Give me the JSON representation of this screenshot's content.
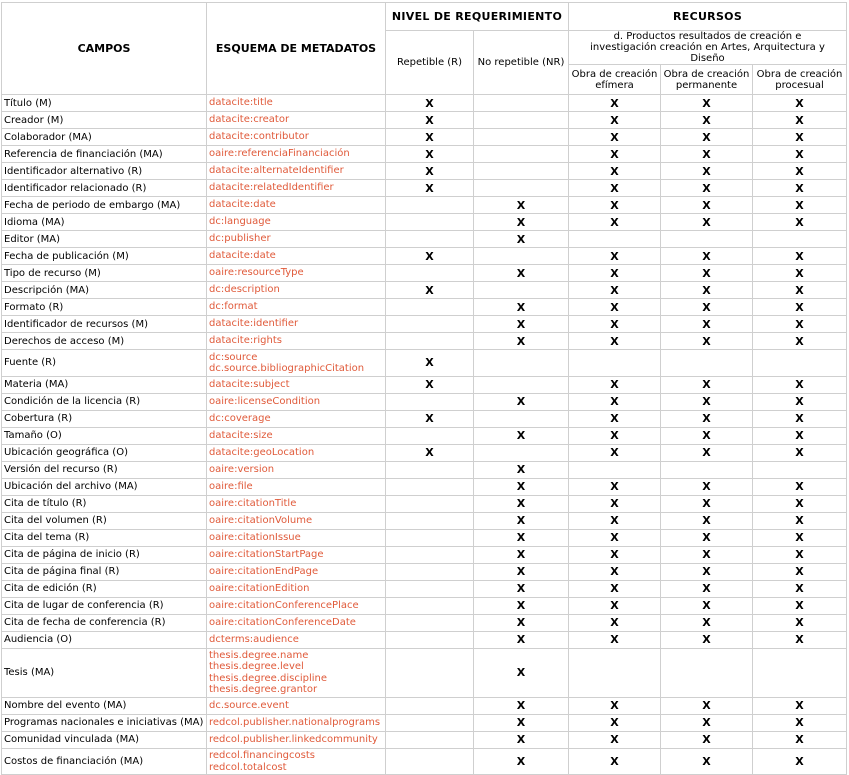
{
  "header": {
    "campos": "CAMPOS",
    "esquema": "ESQUEMA DE METADATOS",
    "nivel": "NIVEL DE REQUERIMIENTO",
    "recursos": "RECURSOS",
    "repetible": "Repetible (R)",
    "no_repetible": "No repetible (NR)",
    "productos": "d. Productos resultados de creación e investigación creación en Artes, Arquitectura y Diseño",
    "obra_efimera": "Obra de creación efímera",
    "obra_permanente": "Obra de creación permanente",
    "obra_procesual": "Obra de creación procesual"
  },
  "rows": [
    {
      "campo": "Título (M)",
      "schema": [
        "datacite:title"
      ],
      "rep": "X",
      "nr": "",
      "ef": "X",
      "pe": "X",
      "pr": "X"
    },
    {
      "campo": "Creador (M)",
      "schema": [
        "datacite:creator"
      ],
      "rep": "X",
      "nr": "",
      "ef": "X",
      "pe": "X",
      "pr": "X"
    },
    {
      "campo": "Colaborador (MA)",
      "schema": [
        "datacite:contributor"
      ],
      "rep": "X",
      "nr": "",
      "ef": "X",
      "pe": "X",
      "pr": "X"
    },
    {
      "campo": "Referencia de financiación (MA)",
      "schema": [
        "oaire:referenciaFinanciación"
      ],
      "rep": "X",
      "nr": "",
      "ef": "X",
      "pe": "X",
      "pr": "X"
    },
    {
      "campo": "Identificador alternativo (R)",
      "schema": [
        "datacite:alternateIdentifier"
      ],
      "rep": "X",
      "nr": "",
      "ef": "X",
      "pe": "X",
      "pr": "X"
    },
    {
      "campo": "Identificador relacionado (R)",
      "schema": [
        "datacite:relatedIdentifier"
      ],
      "rep": "X",
      "nr": "",
      "ef": "X",
      "pe": "X",
      "pr": "X"
    },
    {
      "campo": "Fecha de periodo de embargo (MA)",
      "schema": [
        "datacite:date"
      ],
      "rep": "",
      "nr": "X",
      "ef": "X",
      "pe": "X",
      "pr": "X"
    },
    {
      "campo": "Idioma (MA)",
      "schema": [
        "dc:language"
      ],
      "rep": "",
      "nr": "X",
      "ef": "X",
      "pe": "X",
      "pr": "X"
    },
    {
      "campo": "Editor (MA)",
      "schema": [
        "dc:publisher"
      ],
      "rep": "",
      "nr": "X",
      "ef": "",
      "pe": "",
      "pr": ""
    },
    {
      "campo": "Fecha de publicación (M)",
      "schema": [
        "datacite:date"
      ],
      "rep": "X",
      "nr": "",
      "ef": "X",
      "pe": "X",
      "pr": "X"
    },
    {
      "campo": "Tipo de recurso (M)",
      "schema": [
        "oaire:resourceType"
      ],
      "rep": "",
      "nr": "X",
      "ef": "X",
      "pe": "X",
      "pr": "X"
    },
    {
      "campo": "Descripción (MA)",
      "schema": [
        "dc:description"
      ],
      "rep": "X",
      "nr": "",
      "ef": "X",
      "pe": "X",
      "pr": "X"
    },
    {
      "campo": "Formato (R)",
      "schema": [
        "dc:format"
      ],
      "rep": "",
      "nr": "X",
      "ef": "X",
      "pe": "X",
      "pr": "X"
    },
    {
      "campo": "Identificador de recursos (M)",
      "schema": [
        "datacite:identifier"
      ],
      "rep": "",
      "nr": "X",
      "ef": "X",
      "pe": "X",
      "pr": "X"
    },
    {
      "campo": "Derechos de acceso (M)",
      "schema": [
        "datacite:rights"
      ],
      "rep": "",
      "nr": "X",
      "ef": "X",
      "pe": "X",
      "pr": "X"
    },
    {
      "campo": "Fuente (R)",
      "schema": [
        "dc:source",
        "dc.source.bibliographicCitation"
      ],
      "rep": "X",
      "nr": "",
      "ef": "",
      "pe": "",
      "pr": ""
    },
    {
      "campo": "Materia (MA)",
      "schema": [
        "datacite:subject"
      ],
      "rep": "X",
      "nr": "",
      "ef": "X",
      "pe": "X",
      "pr": "X"
    },
    {
      "campo": "Condición de la licencia (R)",
      "schema": [
        "oaire:licenseCondition"
      ],
      "rep": "",
      "nr": "X",
      "ef": "X",
      "pe": "X",
      "pr": "X"
    },
    {
      "campo": "Cobertura (R)",
      "schema": [
        "dc:coverage"
      ],
      "rep": "X",
      "nr": "",
      "ef": "X",
      "pe": "X",
      "pr": "X"
    },
    {
      "campo": "Tamaño (O)",
      "schema": [
        "datacite:size"
      ],
      "rep": "",
      "nr": "X",
      "ef": "X",
      "pe": "X",
      "pr": "X"
    },
    {
      "campo": "Ubicación geográfica (O)",
      "schema": [
        "datacite:geoLocation"
      ],
      "rep": "X",
      "nr": "",
      "ef": "X",
      "pe": "X",
      "pr": "X"
    },
    {
      "campo": "Versión del recurso (R)",
      "schema": [
        "oaire:version"
      ],
      "rep": "",
      "nr": "X",
      "ef": "",
      "pe": "",
      "pr": ""
    },
    {
      "campo": "Ubicación del archivo (MA)",
      "schema": [
        "oaire:file"
      ],
      "rep": "",
      "nr": "X",
      "ef": "X",
      "pe": "X",
      "pr": "X"
    },
    {
      "campo": "Cita de título (R)",
      "schema": [
        "oaire:citationTitle"
      ],
      "rep": "",
      "nr": "X",
      "ef": "X",
      "pe": "X",
      "pr": "X"
    },
    {
      "campo": "Cita del volumen (R)",
      "schema": [
        "oaire:citationVolume"
      ],
      "rep": "",
      "nr": "X",
      "ef": "X",
      "pe": "X",
      "pr": "X"
    },
    {
      "campo": "Cita del tema (R)",
      "schema": [
        "oaire:citationIssue"
      ],
      "rep": "",
      "nr": "X",
      "ef": "X",
      "pe": "X",
      "pr": "X"
    },
    {
      "campo": "Cita de página de inicio (R)",
      "schema": [
        "oaire:citationStartPage"
      ],
      "rep": "",
      "nr": "X",
      "ef": "X",
      "pe": "X",
      "pr": "X"
    },
    {
      "campo": "Cita de página final (R)",
      "schema": [
        "oaire:citationEndPage"
      ],
      "rep": "",
      "nr": "X",
      "ef": "X",
      "pe": "X",
      "pr": "X"
    },
    {
      "campo": "Cita de edición (R)",
      "schema": [
        "oaire:citationEdition"
      ],
      "rep": "",
      "nr": "X",
      "ef": "X",
      "pe": "X",
      "pr": "X"
    },
    {
      "campo": "Cita de lugar de conferencia (R)",
      "schema": [
        "oaire:citationConferencePlace"
      ],
      "rep": "",
      "nr": "X",
      "ef": "X",
      "pe": "X",
      "pr": "X"
    },
    {
      "campo": "Cita de fecha de conferencia (R)",
      "schema": [
        "oaire:citationConferenceDate"
      ],
      "rep": "",
      "nr": "X",
      "ef": "X",
      "pe": "X",
      "pr": "X"
    },
    {
      "campo": "Audiencia (O)",
      "schema": [
        "dcterms:audience"
      ],
      "rep": "",
      "nr": "X",
      "ef": "X",
      "pe": "X",
      "pr": "X"
    },
    {
      "campo": "Tesis (MA)",
      "schema": [
        "thesis.degree.name",
        "thesis.degree.level",
        "thesis.degree.discipline",
        "thesis.degree.grantor"
      ],
      "rep": "",
      "nr": "X",
      "ef": "",
      "pe": "",
      "pr": ""
    },
    {
      "campo": "Nombre del evento (MA)",
      "schema": [
        "dc.source.event"
      ],
      "rep": "",
      "nr": "X",
      "ef": "X",
      "pe": "X",
      "pr": "X"
    },
    {
      "campo": "Programas nacionales e iniciativas (MA)",
      "schema": [
        "redcol.publisher.nationalprograms"
      ],
      "rep": "",
      "nr": "X",
      "ef": "X",
      "pe": "X",
      "pr": "X"
    },
    {
      "campo": "Comunidad vinculada (MA)",
      "schema": [
        "redcol.publisher.linkedcommunity"
      ],
      "rep": "",
      "nr": "X",
      "ef": "X",
      "pe": "X",
      "pr": "X"
    },
    {
      "campo": "Costos de financiación (MA)",
      "schema": [
        "redcol.financingcosts",
        "redcol.totalcost"
      ],
      "rep": "",
      "nr": "X",
      "ef": "X",
      "pe": "X",
      "pr": "X"
    }
  ],
  "colors": {
    "schema_text": "#e05a3a",
    "border": "#cfcfcf"
  }
}
